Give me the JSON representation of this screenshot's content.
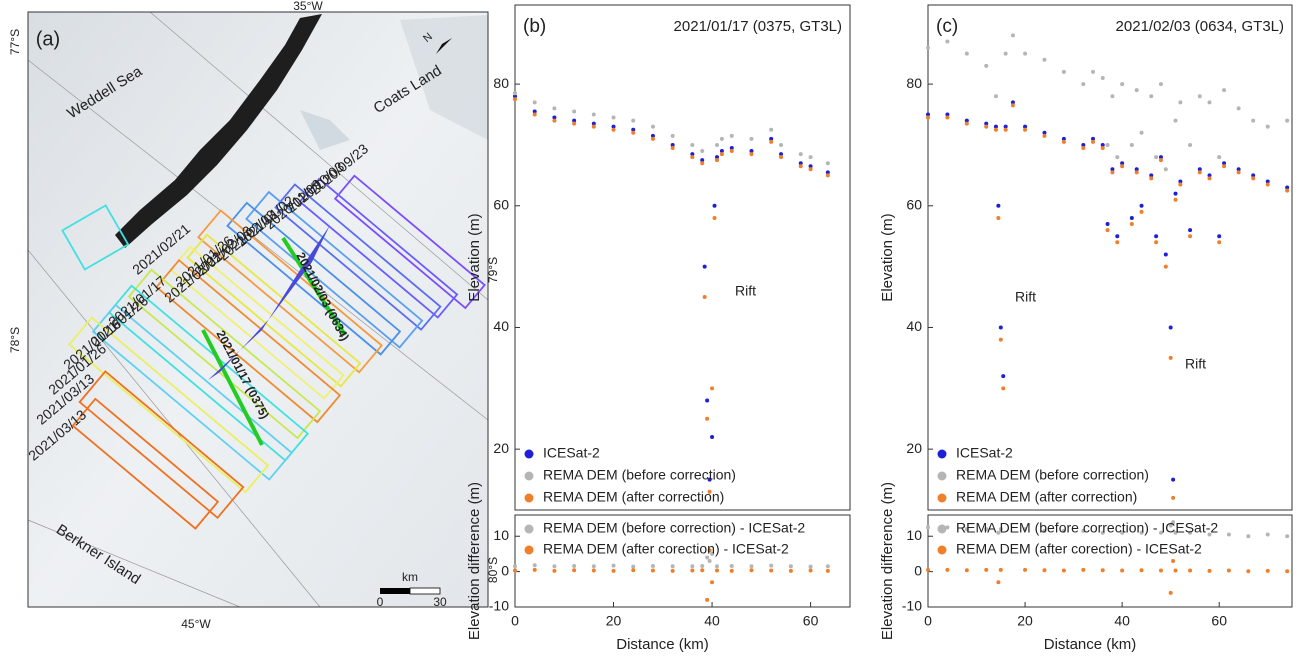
{
  "map": {
    "panel_label": "(a)",
    "lon_labels": [
      "35°W",
      "45°W"
    ],
    "lat_labels": [
      "77°S",
      "78°S",
      "79°S",
      "80°S"
    ],
    "regions": [
      "Weddell Sea",
      "Coats Land",
      "Berkner Island"
    ],
    "track_dates": [
      "2020/09/23",
      "2020/10/03",
      "2020/11/09",
      "2021/01/02",
      "2021/02/03",
      "2021/02/03",
      "2021/01/26",
      "2021/02/02",
      "2021/02/21",
      "2021/01/17",
      "2021/01/26",
      "2021/01/16",
      "2021/01/26",
      "2021/03/13",
      "2021/03/13"
    ],
    "profiles": [
      "2021/01/17 (0375)",
      "2021/02/03 (0634)"
    ],
    "scale": {
      "unit": "km",
      "ticks": [
        0,
        30
      ]
    },
    "north": "N"
  },
  "chart_data": [
    {
      "type": "scatter",
      "panel_label": "(b)",
      "title": "2021/01/17 (0375, GT3L)",
      "y_label": "Elevation (m)",
      "annotations": [
        "Rift"
      ],
      "legend": "lower left",
      "xlim": [
        0,
        68
      ],
      "ylim": [
        10,
        93
      ],
      "yticks": [
        20,
        40,
        60,
        80
      ],
      "x": [
        0,
        4,
        8,
        12,
        16,
        20,
        24,
        28,
        32,
        36,
        38,
        38.5,
        39,
        39.5,
        40,
        40.5,
        41,
        42,
        44,
        48,
        52,
        54,
        58,
        60,
        63.5
      ],
      "series": [
        {
          "name": "ICESat-2",
          "color": "#1f1fd6",
          "values": [
            78,
            75.5,
            74.5,
            74,
            73.5,
            73,
            72.5,
            71.5,
            70,
            68.5,
            67.5,
            50,
            28,
            15,
            22,
            60,
            68,
            69,
            69.5,
            69,
            71,
            68.5,
            67,
            66.5,
            65.5
          ]
        },
        {
          "name": "REMA DEM (before correction)",
          "color": "#b5b5b5",
          "values": [
            78.5,
            77,
            76,
            75.5,
            75,
            74.5,
            74,
            73,
            71.5,
            70,
            69,
            null,
            null,
            null,
            null,
            null,
            70,
            71,
            71.5,
            71,
            72.5,
            70,
            68.5,
            68,
            67
          ]
        },
        {
          "name": "REMA DEM (after correction)",
          "color": "#f07f2a",
          "values": [
            77.5,
            75,
            74,
            73.5,
            73,
            72.5,
            72,
            71,
            69.5,
            68,
            67,
            45,
            25,
            13,
            30,
            58,
            67.5,
            68.5,
            69,
            68.5,
            70.5,
            68,
            66.5,
            66,
            65
          ]
        }
      ]
    },
    {
      "type": "scatter",
      "y_label": "Elevation difference (m)",
      "x_label": "Distance (km)",
      "legend": "upper left",
      "xlim": [
        0,
        68
      ],
      "ylim": [
        -10,
        16
      ],
      "xticks": [
        0,
        20,
        40,
        60
      ],
      "yticks": [
        -10,
        0,
        10
      ],
      "x": [
        0,
        4,
        8,
        12,
        16,
        20,
        24,
        28,
        32,
        36,
        38,
        39,
        39.5,
        40,
        41,
        44,
        48,
        52,
        56,
        60,
        63.5
      ],
      "series": [
        {
          "name": "REMA DEM (before correction) - ICESat-2",
          "color": "#b5b5b5",
          "values": [
            1.5,
            1.8,
            1.5,
            1.6,
            1.5,
            1.7,
            1.4,
            1.6,
            1.5,
            1.5,
            1.6,
            4,
            3,
            5,
            1.5,
            1.6,
            1.5,
            1.7,
            1.5,
            1.4,
            1.5
          ]
        },
        {
          "name": "REMA DEM (after corection) - ICESat-2",
          "color": "#f07f2a",
          "values": [
            0.3,
            0.5,
            0.2,
            0.4,
            0.3,
            0.2,
            0.4,
            0.3,
            0.2,
            0.3,
            0.4,
            -8,
            6,
            -3,
            0.3,
            0.2,
            0.4,
            0.3,
            0.2,
            0.3,
            0.2
          ]
        }
      ]
    },
    {
      "type": "scatter",
      "panel_label": "(c)",
      "title": "2021/02/03 (0634, GT3L)",
      "y_label": "Elevation (m)",
      "annotations": [
        "Rift",
        "Rift"
      ],
      "legend": "lower left",
      "xlim": [
        0,
        75
      ],
      "ylim": [
        10,
        93
      ],
      "yticks": [
        20,
        40,
        60,
        80
      ],
      "x": [
        0,
        4,
        8,
        12,
        14,
        14.5,
        15,
        15.5,
        16,
        17.5,
        20,
        24,
        28,
        32,
        34,
        36,
        37,
        38,
        39,
        40,
        42,
        43,
        44,
        46,
        47,
        48,
        49,
        50,
        50.5,
        51,
        52,
        54,
        56,
        58,
        60,
        61,
        64,
        67,
        70,
        74
      ],
      "series": [
        {
          "name": "ICESat-2",
          "color": "#1f1fd6",
          "values": [
            75,
            75,
            74,
            73.5,
            73,
            60,
            40,
            32,
            73,
            77,
            73,
            72,
            71,
            70,
            71,
            70,
            57,
            66,
            55,
            67,
            58,
            66,
            60,
            65,
            55,
            68,
            52,
            40,
            15,
            62,
            64,
            56,
            66,
            65,
            55,
            67,
            66,
            65,
            64,
            63
          ]
        },
        {
          "name": "REMA DEM (before correction)",
          "color": "#b5b5b5",
          "values": [
            86,
            87,
            85,
            83,
            78,
            null,
            null,
            null,
            85,
            88,
            85,
            84,
            82,
            80,
            82,
            81,
            70,
            78,
            68,
            80,
            70,
            79,
            72,
            78,
            68,
            80,
            66,
            null,
            null,
            74,
            77,
            70,
            78,
            77,
            68,
            79,
            76,
            74,
            73,
            74
          ]
        },
        {
          "name": "REMA DEM (after correction)",
          "color": "#f07f2a",
          "values": [
            74.5,
            74.5,
            73.5,
            73,
            72.5,
            58,
            38,
            30,
            72.5,
            76.5,
            72.5,
            71.5,
            70.5,
            69.5,
            70.5,
            69.5,
            56,
            65.5,
            54,
            66.5,
            57,
            65.5,
            59,
            64.5,
            54,
            67.5,
            50,
            35,
            12,
            61,
            63.5,
            55,
            65.5,
            64.5,
            54,
            66.5,
            65.5,
            64.5,
            63.5,
            62.5
          ]
        }
      ]
    },
    {
      "type": "scatter",
      "y_label": "Elevation difference (m)",
      "x_label": "Distance (km)",
      "legend": "upper left",
      "xlim": [
        0,
        75
      ],
      "ylim": [
        -10,
        16
      ],
      "xticks": [
        0,
        20,
        40,
        60
      ],
      "yticks": [
        -10,
        0,
        10
      ],
      "x": [
        0,
        4,
        8,
        12,
        14.5,
        15,
        20,
        24,
        28,
        32,
        36,
        40,
        44,
        48,
        50,
        50.5,
        51,
        54,
        58,
        62,
        66,
        70,
        74
      ],
      "series": [
        {
          "name": "REMA DEM (before correction) - ICESat-2",
          "color": "#b5b5b5",
          "values": [
            12.5,
            12.5,
            12,
            12,
            11,
            12,
            12,
            11.5,
            11.5,
            11.5,
            11,
            11,
            11,
            11,
            13,
            14,
            11,
            11,
            10.5,
            10.5,
            10,
            10.5,
            10
          ]
        },
        {
          "name": "REMA DEM (after corection) - ICESat-2",
          "color": "#f07f2a",
          "values": [
            0.5,
            0.5,
            0.4,
            0.5,
            -3,
            0.5,
            0.5,
            0.4,
            0.3,
            0.5,
            0.4,
            0.3,
            0.4,
            0.3,
            -6,
            3,
            0.3,
            0.3,
            0.2,
            0.3,
            0.1,
            0.2,
            0.1
          ]
        }
      ]
    }
  ]
}
